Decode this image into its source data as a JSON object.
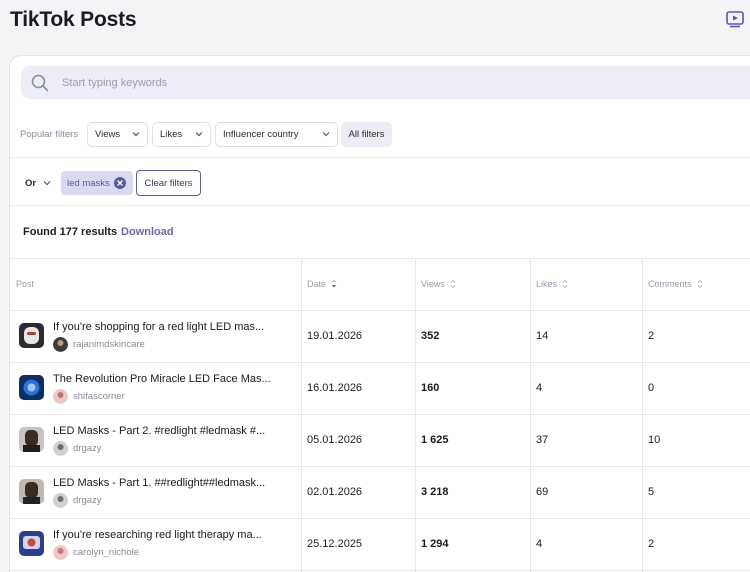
{
  "page": {
    "title": "TikTok Posts"
  },
  "search": {
    "placeholder": "Start typing keywords"
  },
  "filters": {
    "popular_label": "Popular filters",
    "views": "Views",
    "likes": "Likes",
    "country": "Influencer country",
    "all": "All filters"
  },
  "keyword_filter": {
    "operator": "Or",
    "chip": "led masks",
    "clear": "Clear filters"
  },
  "results": {
    "found": "Found 177 results",
    "download": "Download"
  },
  "table": {
    "headers": {
      "post": "Post",
      "date": "Date",
      "views": "Views",
      "likes": "Likes",
      "comments": "Comments"
    },
    "rows": [
      {
        "title": "If you're shopping for a red light LED mas...",
        "author": "rajanimdskincare",
        "date": "19.01.2026",
        "views": "352",
        "likes": "14",
        "comments": "2"
      },
      {
        "title": "The Revolution Pro Miracle LED Face Mas...",
        "author": "shifascorner",
        "date": "16.01.2026",
        "views": "160",
        "likes": "4",
        "comments": "0"
      },
      {
        "title": "LED Masks - Part 2. #redlight #ledmask #...",
        "author": "drgazy",
        "date": "05.01.2026",
        "views": "1 625",
        "likes": "37",
        "comments": "10"
      },
      {
        "title": "LED Masks - Part 1. ##redlight##ledmask...",
        "author": "drgazy",
        "date": "02.01.2026",
        "views": "3 218",
        "likes": "69",
        "comments": "5"
      },
      {
        "title": "If you're researching red light therapy ma...",
        "author": "carolyn_nichole",
        "date": "25.12.2025",
        "views": "1 294",
        "likes": "4",
        "comments": "2"
      }
    ]
  }
}
